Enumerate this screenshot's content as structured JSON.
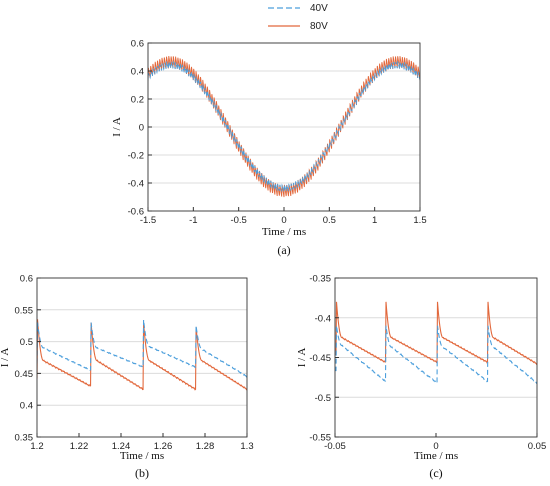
{
  "colors": {
    "s40": "#4c9fdc",
    "s80": "#e2683c",
    "grid": "#dcdcdc",
    "axis": "#333333"
  },
  "legend": {
    "items": [
      "40V",
      "80V"
    ]
  },
  "chart_data": [
    {
      "id": "a",
      "type": "line",
      "caption": "(a)",
      "xlabel": "Time / ms",
      "ylabel": "I / A",
      "xlim": [
        -1.5,
        1.5
      ],
      "ylim": [
        -0.6,
        0.6
      ],
      "xticks": [
        -1.5,
        -1,
        -0.5,
        0,
        0.5,
        1,
        1.5
      ],
      "yticks": [
        -0.6,
        -0.4,
        -0.2,
        0,
        0.2,
        0.4,
        0.6
      ],
      "xtick_labels": [
        "-1.5",
        "-1",
        "-0.5",
        "0",
        "0.5",
        "1",
        "1.5"
      ],
      "ytick_labels": [
        "-0.6",
        "-0.4",
        "-0.2",
        "0",
        "0.2",
        "0.4",
        "0.6"
      ],
      "grid": "y",
      "series": [
        {
          "name": "40V",
          "style": "dashed",
          "shape": "sine",
          "period_ms": 2.5,
          "amplitude": 0.44,
          "ripple_period_ms": 0.025,
          "ripple_amplitude": 0.05,
          "x": [
            -1.5,
            -1.25,
            -1.0,
            -0.75,
            -0.5,
            -0.25,
            0,
            0.25,
            0.5,
            0.75,
            1.0,
            1.25,
            1.5
          ],
          "y": [
            0.42,
            0.44,
            0.36,
            0.14,
            -0.14,
            -0.36,
            -0.44,
            -0.36,
            -0.14,
            0.14,
            0.36,
            0.44,
            0.42
          ]
        },
        {
          "name": "80V",
          "style": "solid",
          "shape": "sine",
          "period_ms": 2.5,
          "amplitude": 0.46,
          "ripple_period_ms": 0.025,
          "ripple_amplitude": 0.09,
          "x": [
            -1.5,
            -1.25,
            -1.0,
            -0.75,
            -0.5,
            -0.25,
            0,
            0.25,
            0.5,
            0.75,
            1.0,
            1.25,
            1.5
          ],
          "y": [
            0.44,
            0.46,
            0.38,
            0.15,
            -0.15,
            -0.38,
            -0.46,
            -0.38,
            -0.15,
            0.15,
            0.38,
            0.46,
            0.44
          ]
        }
      ]
    },
    {
      "id": "b",
      "type": "line",
      "caption": "(b)",
      "xlabel": "Time / ms",
      "ylabel": "I / A",
      "xlim": [
        1.2,
        1.3
      ],
      "ylim": [
        0.35,
        0.6
      ],
      "xticks": [
        1.2,
        1.22,
        1.24,
        1.26,
        1.28,
        1.3
      ],
      "yticks": [
        0.35,
        0.4,
        0.45,
        0.5,
        0.55,
        0.6
      ],
      "xtick_labels": [
        "1.2",
        "1.22",
        "1.24",
        "1.26",
        "1.28",
        "1.3"
      ],
      "ytick_labels": [
        "0.35",
        "0.4",
        "0.45",
        "0.5",
        "0.55",
        "0.6"
      ],
      "grid": "y",
      "series": [
        {
          "name": "40V",
          "style": "dashed",
          "shape": "sawtooth",
          "peaks": [
            1.2,
            1.2255,
            1.2505,
            1.2755
          ],
          "peak_values": [
            0.53,
            0.53,
            0.534,
            0.525
          ],
          "knee_values": [
            0.49,
            0.49,
            0.492,
            0.488
          ],
          "end_values": [
            0.455,
            0.46,
            0.46,
            0.445
          ]
        },
        {
          "name": "80V",
          "style": "solid",
          "shape": "sawtooth",
          "peaks": [
            1.2,
            1.2255,
            1.2505,
            1.2755
          ],
          "peak_values": [
            0.535,
            0.53,
            0.53,
            0.523
          ],
          "knee_values": [
            0.47,
            0.47,
            0.47,
            0.47
          ],
          "end_values": [
            0.43,
            0.425,
            0.425,
            0.425
          ]
        }
      ]
    },
    {
      "id": "c",
      "type": "line",
      "caption": "(c)",
      "xlabel": "Time / ms",
      "ylabel": "I / A",
      "xlim": [
        -0.05,
        0.05
      ],
      "ylim": [
        -0.55,
        -0.35
      ],
      "xticks": [
        -0.05,
        0,
        0.05
      ],
      "yticks": [
        -0.55,
        -0.5,
        -0.45,
        -0.4,
        -0.35
      ],
      "xtick_labels": [
        "-0.05",
        "0",
        "0.05"
      ],
      "ytick_labels": [
        "-0.55",
        "-0.5",
        "-0.45",
        "-0.4",
        "-0.35"
      ],
      "grid": "y",
      "series": [
        {
          "name": "40V",
          "style": "dashed",
          "shape": "sawtooth",
          "peaks": [
            -0.0495,
            -0.025,
            0.0005,
            0.0255
          ],
          "peak_values": [
            -0.41,
            -0.41,
            -0.41,
            -0.41
          ],
          "knee_values": [
            -0.435,
            -0.437,
            -0.437,
            -0.437
          ],
          "end_values": [
            -0.48,
            -0.482,
            -0.48,
            -0.482
          ]
        },
        {
          "name": "80V",
          "style": "solid",
          "shape": "sawtooth",
          "peaks": [
            -0.0495,
            -0.025,
            0.0005,
            0.0255
          ],
          "peak_values": [
            -0.38,
            -0.38,
            -0.38,
            -0.38
          ],
          "knee_values": [
            -0.425,
            -0.425,
            -0.425,
            -0.425
          ],
          "end_values": [
            -0.456,
            -0.456,
            -0.456,
            -0.458
          ]
        }
      ]
    }
  ]
}
